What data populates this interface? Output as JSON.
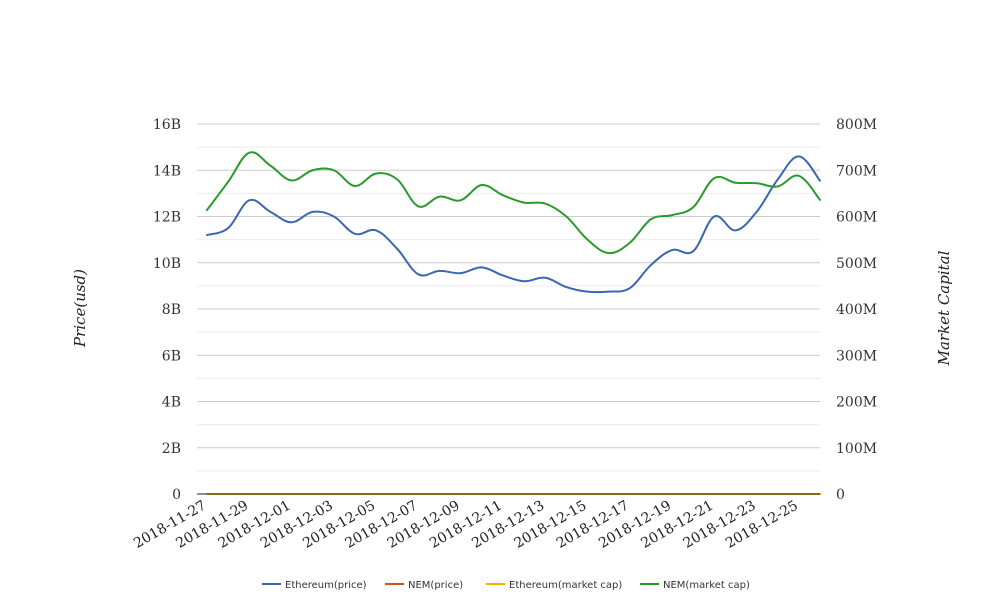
{
  "chart_data": {
    "type": "line",
    "title": "",
    "xlabel": "",
    "ylabel": "Price(usd)",
    "y2label": "Market Capital",
    "x": [
      "2018-11-27",
      "2018-11-28",
      "2018-11-29",
      "2018-11-30",
      "2018-12-01",
      "2018-12-02",
      "2018-12-03",
      "2018-12-04",
      "2018-12-05",
      "2018-12-06",
      "2018-12-07",
      "2018-12-08",
      "2018-12-09",
      "2018-12-10",
      "2018-12-11",
      "2018-12-12",
      "2018-12-13",
      "2018-12-14",
      "2018-12-15",
      "2018-12-16",
      "2018-12-17",
      "2018-12-18",
      "2018-12-19",
      "2018-12-20",
      "2018-12-21",
      "2018-12-22",
      "2018-12-23",
      "2018-12-24",
      "2018-12-25",
      "2018-12-26"
    ],
    "x_tick_labels": [
      "2018-11-27",
      "2018-11-29",
      "2018-12-01",
      "2018-12-03",
      "2018-12-05",
      "2018-12-07",
      "2018-12-09",
      "2018-12-11",
      "2018-12-13",
      "2018-12-15",
      "2018-12-17",
      "2018-12-19",
      "2018-12-21",
      "2018-12-23",
      "2018-12-25"
    ],
    "ylim": [
      0,
      16000000000
    ],
    "y2lim": [
      0,
      800000000
    ],
    "y_ticks": [
      "0",
      "2B",
      "4B",
      "6B",
      "8B",
      "10B",
      "12B",
      "14B",
      "16B"
    ],
    "y2_ticks": [
      "0",
      "100M",
      "200M",
      "300M",
      "400M",
      "500M",
      "600M",
      "700M",
      "800M"
    ],
    "grid": true,
    "legend_position": "bottom",
    "series": [
      {
        "name": "Ethereum(price)",
        "axis": "left",
        "color": "#3b66b0",
        "values": [
          11200000000,
          11500000000,
          12700000000,
          12200000000,
          11750000000,
          12200000000,
          12000000000,
          11250000000,
          11400000000,
          10600000000,
          9500000000,
          9650000000,
          9550000000,
          9800000000,
          9450000000,
          9200000000,
          9350000000,
          8950000000,
          8750000000,
          8750000000,
          8900000000,
          9900000000,
          10550000000,
          10500000000,
          12000000000,
          11400000000,
          12200000000,
          13600000000,
          14600000000,
          13550000000
        ]
      },
      {
        "name": "NEM(price)",
        "axis": "left",
        "color": "#d94f1c",
        "values": [
          0,
          0,
          0,
          0,
          0,
          0,
          0,
          0,
          0,
          0,
          0,
          0,
          0,
          0,
          0,
          0,
          0,
          0,
          0,
          0,
          0,
          0,
          0,
          0,
          0,
          0,
          0,
          0,
          0,
          0
        ]
      },
      {
        "name": "Ethereum(market cap)",
        "axis": "right",
        "color": "#f0b400",
        "values": [
          0,
          0,
          0,
          0,
          0,
          0,
          0,
          0,
          0,
          0,
          0,
          0,
          0,
          0,
          0,
          0,
          0,
          0,
          0,
          0,
          0,
          0,
          0,
          0,
          0,
          0,
          0,
          0,
          0,
          0
        ]
      },
      {
        "name": "NEM(market cap)",
        "axis": "right",
        "color": "#2a9a2a",
        "values": [
          614000000,
          675000000,
          738000000,
          710000000,
          678000000,
          700000000,
          700000000,
          666000000,
          693000000,
          680000000,
          622000000,
          643000000,
          635000000,
          668000000,
          646000000,
          630000000,
          628000000,
          600000000,
          550000000,
          521000000,
          543000000,
          594000000,
          603000000,
          620000000,
          683000000,
          673000000,
          672000000,
          665000000,
          688000000,
          636000000
        ]
      }
    ]
  }
}
